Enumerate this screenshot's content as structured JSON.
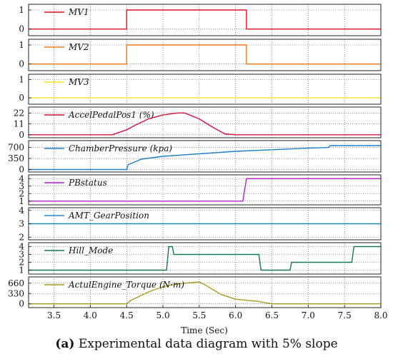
{
  "chart_data": {
    "type": "line",
    "xlabel": "Time (Sec)",
    "xlim": [
      3.15,
      8.0
    ],
    "xticks": [
      3.5,
      4.0,
      4.5,
      5.0,
      5.5,
      6.0,
      6.5,
      7.0,
      7.5,
      8.0
    ],
    "xtick_labels": [
      "3.5",
      "4.0",
      "4.5",
      "5.0",
      "5.5",
      "6.0",
      "6.5",
      "7.0",
      "7.5",
      "8.0"
    ],
    "grid": true,
    "panels": [
      {
        "name": "MV1",
        "color": "#e01020",
        "ylim": [
          -0.35,
          1.3
        ],
        "yticks": [
          0,
          1
        ],
        "ytick_labels": [
          "0",
          "1"
        ],
        "x": [
          3.15,
          4.5,
          4.5,
          6.15,
          6.15,
          8.0
        ],
        "y": [
          0,
          0,
          1,
          1,
          0,
          0
        ]
      },
      {
        "name": "MV2",
        "color": "#f07a1a",
        "ylim": [
          -0.35,
          1.3
        ],
        "yticks": [
          0,
          1
        ],
        "ytick_labels": [
          "0",
          "1"
        ],
        "x": [
          3.15,
          4.5,
          4.5,
          6.15,
          6.15,
          8.0
        ],
        "y": [
          0,
          0,
          1,
          1,
          0,
          0
        ]
      },
      {
        "name": "MV3",
        "color": "#f2e21c",
        "ylim": [
          -0.35,
          1.3
        ],
        "yticks": [
          0,
          1
        ],
        "ytick_labels": [
          "0",
          "1"
        ],
        "x": [
          3.15,
          8.0
        ],
        "y": [
          0,
          0
        ]
      },
      {
        "name": "AccelPedalPos1 (%)",
        "color": "#d6143c",
        "ylim": [
          -3,
          28
        ],
        "yticks": [
          0,
          11,
          22
        ],
        "ytick_labels": [
          "0",
          "11",
          "22"
        ],
        "x": [
          3.15,
          4.3,
          4.5,
          4.6,
          4.8,
          5.0,
          5.2,
          5.3,
          5.5,
          5.7,
          5.85,
          6.0,
          8.0
        ],
        "y": [
          0,
          0,
          5,
          9,
          16,
          20,
          22,
          22,
          16,
          7,
          1,
          0,
          0
        ]
      },
      {
        "name": "ChamberPressure (kpa)",
        "color": "#1e7fc8",
        "ylim": [
          -80,
          920
        ],
        "yticks": [
          0,
          350,
          700
        ],
        "ytick_labels": [
          "0",
          "350",
          "700"
        ],
        "x": [
          3.15,
          4.5,
          4.52,
          4.7,
          5.0,
          5.5,
          6.0,
          6.5,
          7.0,
          7.28,
          7.3,
          8.0
        ],
        "y": [
          0,
          0,
          150,
          330,
          420,
          500,
          580,
          630,
          680,
          700,
          760,
          760
        ]
      },
      {
        "name": "PBstatus",
        "color": "#b020d8",
        "ylim": [
          0.5,
          4.5
        ],
        "yticks": [
          1,
          2,
          3,
          4
        ],
        "ytick_labels": [
          "1",
          "2",
          "3",
          "4"
        ],
        "x": [
          3.15,
          6.1,
          6.15,
          8.0
        ],
        "y": [
          1,
          1,
          4,
          4
        ]
      },
      {
        "name": "AMT_GearPosition",
        "color": "#1a8ac9",
        "ylim": [
          1.8,
          4.2
        ],
        "yticks": [
          2,
          3,
          4
        ],
        "ytick_labels": [
          "2",
          "3",
          "4"
        ],
        "x": [
          3.15,
          8.0
        ],
        "y": [
          3,
          3
        ]
      },
      {
        "name": "Hill_Mode",
        "color": "#157a4a",
        "ylim": [
          0.5,
          4.5
        ],
        "yticks": [
          1,
          2,
          3,
          4
        ],
        "ytick_labels": [
          "1",
          "2",
          "3",
          "4"
        ],
        "x": [
          3.15,
          5.05,
          5.08,
          5.13,
          5.15,
          6.32,
          6.35,
          6.75,
          6.77,
          7.6,
          7.63,
          8.0
        ],
        "y": [
          1,
          1,
          4,
          4,
          3,
          3,
          1,
          1,
          2,
          2,
          4,
          4
        ]
      },
      {
        "name": "ActulEngine_Torque (N·m)",
        "color": "#a89a1e",
        "ylim": [
          -120,
          860
        ],
        "yticks": [
          0,
          330,
          660
        ],
        "ytick_labels": [
          "0",
          "330",
          "660"
        ],
        "x": [
          3.15,
          4.5,
          4.55,
          4.8,
          5.0,
          5.25,
          5.5,
          5.6,
          5.8,
          6.0,
          6.3,
          6.5,
          8.0
        ],
        "y": [
          0,
          0,
          100,
          380,
          550,
          650,
          700,
          580,
          300,
          150,
          80,
          0,
          0
        ]
      }
    ]
  },
  "caption": {
    "label": "(a)",
    "text": " Experimental data diagram with 5% slope"
  }
}
